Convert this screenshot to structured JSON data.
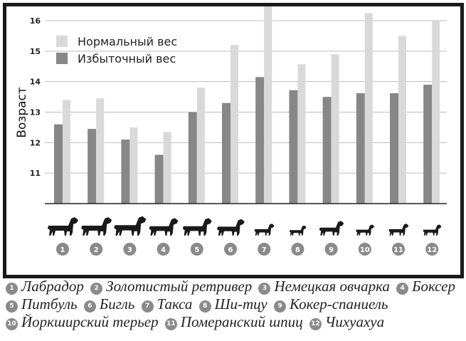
{
  "chart_data": {
    "type": "bar",
    "title": "",
    "xlabel": "",
    "ylabel": "Возраст",
    "ylim": [
      10,
      16.5
    ],
    "yticks": [
      11,
      12,
      13,
      14,
      15,
      16
    ],
    "grid": true,
    "legend_position": "top-left",
    "categories": [
      "1",
      "2",
      "3",
      "4",
      "5",
      "6",
      "7",
      "8",
      "9",
      "10",
      "11",
      "12"
    ],
    "series": [
      {
        "name": "Нормальный вес",
        "color": "#d9d9d9",
        "values": [
          13.4,
          13.45,
          12.5,
          12.35,
          13.8,
          15.2,
          16.5,
          14.57,
          14.9,
          16.25,
          15.5,
          16.0
        ]
      },
      {
        "name": "Избыточный вес",
        "color": "#878787",
        "values": [
          12.6,
          12.45,
          12.1,
          11.6,
          13.0,
          13.3,
          14.15,
          13.72,
          13.5,
          13.62,
          13.62,
          13.9
        ]
      }
    ]
  },
  "breeds": [
    {
      "num": "1",
      "name": "Лабрадор"
    },
    {
      "num": "2",
      "name": "Золотистый ретривер"
    },
    {
      "num": "3",
      "name": "Немецкая овчарка"
    },
    {
      "num": "4",
      "name": "Боксер"
    },
    {
      "num": "5",
      "name": "Питбуль"
    },
    {
      "num": "6",
      "name": "Бигль"
    },
    {
      "num": "7",
      "name": "Такса"
    },
    {
      "num": "8",
      "name": "Ши-тцу"
    },
    {
      "num": "9",
      "name": "Кокер-спаниель"
    },
    {
      "num": "10",
      "name": "Йоркширский терьер"
    },
    {
      "num": "11",
      "name": "Померанский шпиц"
    },
    {
      "num": "12",
      "name": "Чихуахуа"
    }
  ],
  "icons": {
    "dog": "dog-silhouette-icon"
  }
}
